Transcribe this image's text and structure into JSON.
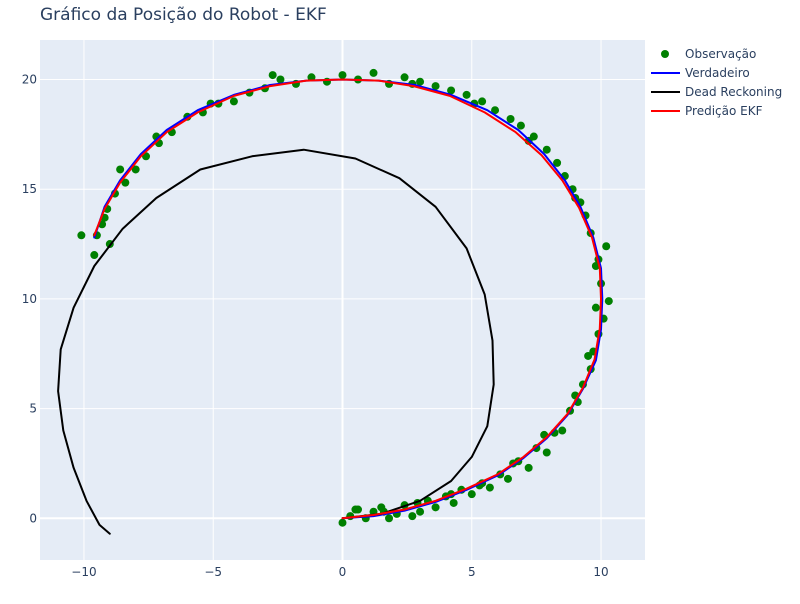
{
  "chart_data": {
    "type": "scatter",
    "title": "Gráfico da Posição do Robot - EKF",
    "xlabel": "",
    "ylabel": "",
    "xlim": [
      -11.7,
      11.7
    ],
    "ylim": [
      -1.9,
      21.8
    ],
    "x_ticks": [
      -10,
      -5,
      0,
      5,
      10
    ],
    "y_ticks": [
      0,
      5,
      10,
      15,
      20
    ],
    "grid": true,
    "legend_position": "top-right",
    "background": "#e5ecf6",
    "series": [
      {
        "name": "Observação",
        "mode": "markers",
        "color": "#008000",
        "points": [
          [
            0.0,
            -0.2
          ],
          [
            0.3,
            0.1
          ],
          [
            0.6,
            0.4
          ],
          [
            0.9,
            0.0
          ],
          [
            1.2,
            0.3
          ],
          [
            1.5,
            0.5
          ],
          [
            1.8,
            0.0
          ],
          [
            2.1,
            0.2
          ],
          [
            2.4,
            0.6
          ],
          [
            2.7,
            0.1
          ],
          [
            3.0,
            0.3
          ],
          [
            3.3,
            0.8
          ],
          [
            3.6,
            0.5
          ],
          [
            4.0,
            1.0
          ],
          [
            4.3,
            0.7
          ],
          [
            4.6,
            1.3
          ],
          [
            5.0,
            1.1
          ],
          [
            5.3,
            1.5
          ],
          [
            5.7,
            1.4
          ],
          [
            6.1,
            2.0
          ],
          [
            6.4,
            1.8
          ],
          [
            6.8,
            2.6
          ],
          [
            7.2,
            2.3
          ],
          [
            7.5,
            3.2
          ],
          [
            7.9,
            3.0
          ],
          [
            8.2,
            3.9
          ],
          [
            8.5,
            4.0
          ],
          [
            8.8,
            4.9
          ],
          [
            9.1,
            5.3
          ],
          [
            9.3,
            6.1
          ],
          [
            9.6,
            6.8
          ],
          [
            9.7,
            7.6
          ],
          [
            9.9,
            8.4
          ],
          [
            10.1,
            9.1
          ],
          [
            10.3,
            9.9
          ],
          [
            10.0,
            10.7
          ],
          [
            9.8,
            11.5
          ],
          [
            10.2,
            12.4
          ],
          [
            9.6,
            13.0
          ],
          [
            9.4,
            13.8
          ],
          [
            9.2,
            14.4
          ],
          [
            8.9,
            15.0
          ],
          [
            8.6,
            15.6
          ],
          [
            8.3,
            16.2
          ],
          [
            7.9,
            16.8
          ],
          [
            7.4,
            17.4
          ],
          [
            6.9,
            17.9
          ],
          [
            6.5,
            18.2
          ],
          [
            5.9,
            18.6
          ],
          [
            5.4,
            19.0
          ],
          [
            4.8,
            19.3
          ],
          [
            4.2,
            19.5
          ],
          [
            3.6,
            19.7
          ],
          [
            3.0,
            19.9
          ],
          [
            2.4,
            20.1
          ],
          [
            1.8,
            19.8
          ],
          [
            1.2,
            20.3
          ],
          [
            0.6,
            20.0
          ],
          [
            0.0,
            20.2
          ],
          [
            -0.6,
            19.9
          ],
          [
            -1.2,
            20.1
          ],
          [
            -1.8,
            19.8
          ],
          [
            -2.4,
            20.0
          ],
          [
            -3.0,
            19.6
          ],
          [
            -3.6,
            19.4
          ],
          [
            -4.2,
            19.0
          ],
          [
            -4.8,
            18.9
          ],
          [
            -5.4,
            18.5
          ],
          [
            -6.0,
            18.3
          ],
          [
            -6.6,
            17.6
          ],
          [
            -7.1,
            17.1
          ],
          [
            -7.6,
            16.5
          ],
          [
            -8.0,
            15.9
          ],
          [
            -8.4,
            15.3
          ],
          [
            -8.8,
            14.8
          ],
          [
            -9.1,
            14.1
          ],
          [
            -9.3,
            13.4
          ],
          [
            -9.5,
            12.9
          ],
          [
            -10.1,
            12.9
          ],
          [
            -9.0,
            12.5
          ],
          [
            -9.6,
            12.0
          ],
          [
            -9.2,
            13.7
          ],
          [
            -8.6,
            15.9
          ],
          [
            -7.2,
            17.4
          ],
          [
            -5.1,
            18.9
          ],
          [
            -2.7,
            20.2
          ],
          [
            2.7,
            19.8
          ],
          [
            5.1,
            18.9
          ],
          [
            7.2,
            17.2
          ],
          [
            9.0,
            14.6
          ],
          [
            9.9,
            11.8
          ],
          [
            9.8,
            9.6
          ],
          [
            9.5,
            7.4
          ],
          [
            9.0,
            5.6
          ],
          [
            7.8,
            3.8
          ],
          [
            6.6,
            2.5
          ],
          [
            5.4,
            1.6
          ],
          [
            4.2,
            1.1
          ],
          [
            2.9,
            0.7
          ],
          [
            1.6,
            0.3
          ],
          [
            0.5,
            0.4
          ]
        ]
      },
      {
        "name": "Verdadeiro",
        "mode": "lines",
        "color": "#0000ff",
        "points": [
          [
            0.0,
            0.0
          ],
          [
            1.2,
            0.1
          ],
          [
            2.4,
            0.35
          ],
          [
            3.6,
            0.75
          ],
          [
            4.8,
            1.3
          ],
          [
            6.0,
            1.95
          ],
          [
            7.0,
            2.75
          ],
          [
            7.9,
            3.65
          ],
          [
            8.7,
            4.7
          ],
          [
            9.3,
            5.9
          ],
          [
            9.8,
            7.2
          ],
          [
            10.0,
            8.6
          ],
          [
            10.05,
            10.0
          ],
          [
            10.0,
            11.4
          ],
          [
            9.7,
            12.8
          ],
          [
            9.2,
            14.2
          ],
          [
            8.6,
            15.4
          ],
          [
            7.8,
            16.6
          ],
          [
            6.8,
            17.7
          ],
          [
            5.6,
            18.6
          ],
          [
            4.2,
            19.3
          ],
          [
            2.8,
            19.75
          ],
          [
            1.4,
            19.95
          ],
          [
            0.0,
            20.0
          ],
          [
            -1.4,
            19.95
          ],
          [
            -2.8,
            19.75
          ],
          [
            -4.2,
            19.3
          ],
          [
            -5.6,
            18.6
          ],
          [
            -6.8,
            17.7
          ],
          [
            -7.8,
            16.6
          ],
          [
            -8.6,
            15.4
          ],
          [
            -9.2,
            14.2
          ],
          [
            -9.6,
            12.8
          ]
        ]
      },
      {
        "name": "Dead Reckoning",
        "mode": "lines",
        "color": "#000000",
        "points": [
          [
            0.0,
            0.0
          ],
          [
            1.5,
            0.2
          ],
          [
            3.0,
            0.8
          ],
          [
            4.2,
            1.7
          ],
          [
            5.0,
            2.8
          ],
          [
            5.6,
            4.2
          ],
          [
            5.85,
            6.1
          ],
          [
            5.8,
            8.1
          ],
          [
            5.5,
            10.2
          ],
          [
            4.8,
            12.3
          ],
          [
            3.6,
            14.2
          ],
          [
            2.2,
            15.5
          ],
          [
            0.5,
            16.4
          ],
          [
            -1.5,
            16.8
          ],
          [
            -3.5,
            16.5
          ],
          [
            -5.5,
            15.9
          ],
          [
            -7.2,
            14.6
          ],
          [
            -8.5,
            13.2
          ],
          [
            -9.6,
            11.5
          ],
          [
            -10.4,
            9.6
          ],
          [
            -10.9,
            7.7
          ],
          [
            -11.0,
            5.8
          ],
          [
            -10.8,
            4.0
          ],
          [
            -10.4,
            2.3
          ],
          [
            -9.9,
            0.8
          ],
          [
            -9.4,
            -0.3
          ],
          [
            -9.0,
            -0.7
          ]
        ]
      },
      {
        "name": "Predição EKF",
        "mode": "lines",
        "color": "#ff0000",
        "points": [
          [
            0.0,
            0.0
          ],
          [
            1.2,
            0.15
          ],
          [
            2.4,
            0.4
          ],
          [
            3.6,
            0.8
          ],
          [
            4.8,
            1.35
          ],
          [
            6.0,
            2.0
          ],
          [
            7.0,
            2.8
          ],
          [
            7.9,
            3.7
          ],
          [
            8.7,
            4.75
          ],
          [
            9.3,
            5.95
          ],
          [
            9.75,
            7.25
          ],
          [
            9.95,
            8.65
          ],
          [
            10.0,
            10.0
          ],
          [
            9.95,
            11.4
          ],
          [
            9.65,
            12.8
          ],
          [
            9.15,
            14.15
          ],
          [
            8.5,
            15.4
          ],
          [
            7.7,
            16.55
          ],
          [
            6.7,
            17.6
          ],
          [
            5.5,
            18.5
          ],
          [
            4.15,
            19.25
          ],
          [
            2.75,
            19.7
          ],
          [
            1.4,
            19.95
          ],
          [
            0.0,
            20.0
          ],
          [
            -1.4,
            19.95
          ],
          [
            -2.8,
            19.7
          ],
          [
            -4.2,
            19.25
          ],
          [
            -5.6,
            18.5
          ],
          [
            -6.8,
            17.6
          ],
          [
            -7.8,
            16.5
          ],
          [
            -8.6,
            15.3
          ],
          [
            -9.2,
            14.1
          ],
          [
            -9.6,
            12.9
          ]
        ]
      }
    ]
  }
}
